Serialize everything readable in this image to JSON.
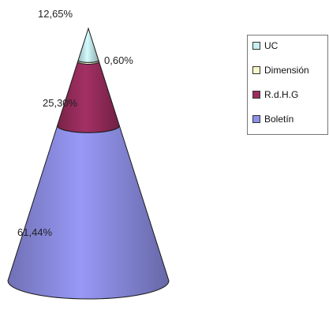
{
  "chart_data": {
    "type": "cone",
    "categories": [
      "UC",
      "Dimensión",
      "R.d.H.G",
      "Boletín"
    ],
    "values": [
      12.65,
      0.6,
      25.3,
      61.44
    ],
    "data_labels": [
      "12,65%",
      "0,60%",
      "25,30%",
      "61,44%"
    ],
    "series": [
      {
        "name": "UC",
        "value": 12.65,
        "label": "12,65%",
        "color": "#c7eef0"
      },
      {
        "name": "Dimensión",
        "value": 0.6,
        "label": "0,60%",
        "color": "#f7f7cc"
      },
      {
        "name": "R.d.H.G",
        "value": 25.3,
        "label": "25,30%",
        "color": "#9b2d5e"
      },
      {
        "name": "Boletín",
        "value": 61.44,
        "label": "61,44%",
        "color": "#8f90e8"
      }
    ],
    "legend_placement": "right"
  },
  "legend": {
    "items": [
      {
        "label": "UC",
        "color": "#c7eef0"
      },
      {
        "label": "Dimensión",
        "color": "#f7f7cc"
      },
      {
        "label": "R.d.H.G",
        "color": "#9b2d5e"
      },
      {
        "label": "Boletín",
        "color": "#8f90e8"
      }
    ]
  }
}
